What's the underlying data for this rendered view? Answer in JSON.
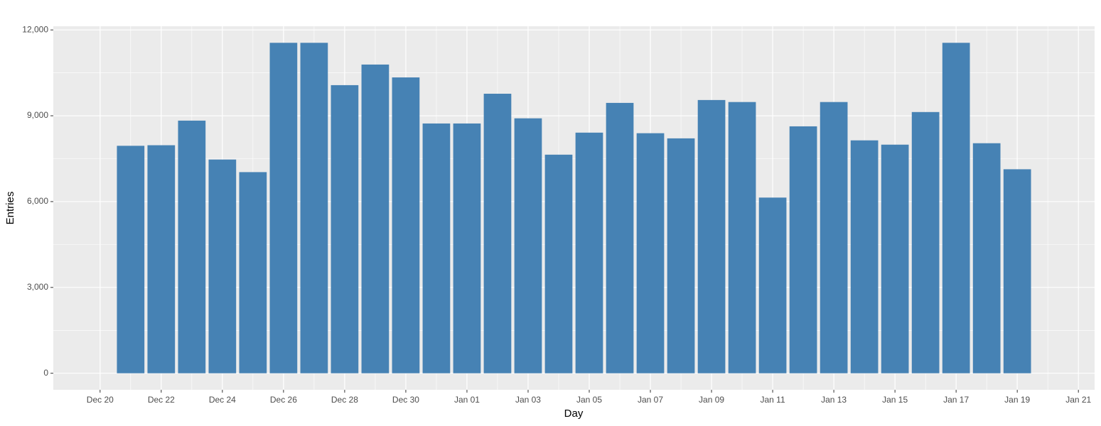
{
  "chart_data": {
    "type": "bar",
    "x_label": "Day",
    "y_label": "Entries",
    "x": [
      "Dec 21",
      "Dec 22",
      "Dec 23",
      "Dec 24",
      "Dec 25",
      "Dec 26",
      "Dec 27",
      "Dec 28",
      "Dec 29",
      "Dec 30",
      "Dec 31",
      "Jan 01",
      "Jan 02",
      "Jan 03",
      "Jan 04",
      "Jan 05",
      "Jan 06",
      "Jan 07",
      "Jan 08",
      "Jan 09",
      "Jan 10",
      "Jan 11",
      "Jan 12",
      "Jan 13",
      "Jan 14",
      "Jan 15",
      "Jan 16",
      "Jan 17",
      "Jan 18",
      "Jan 19"
    ],
    "values": [
      7950,
      7970,
      8830,
      7470,
      7030,
      11550,
      11550,
      10070,
      10790,
      10340,
      8730,
      8730,
      9770,
      8910,
      7640,
      8410,
      9450,
      8390,
      8210,
      9550,
      9480,
      6140,
      8630,
      9480,
      8140,
      7990,
      9130,
      11550,
      8040,
      7130
    ],
    "color": "#4682b4",
    "xticks": [
      "Dec 20",
      "Dec 22",
      "Dec 24",
      "Dec 26",
      "Dec 28",
      "Dec 30",
      "Jan 01",
      "Jan 03",
      "Jan 05",
      "Jan 07",
      "Jan 09",
      "Jan 11",
      "Jan 13",
      "Jan 15",
      "Jan 17",
      "Jan 19",
      "Jan 21"
    ],
    "ylim": [
      -578,
      12128
    ],
    "yticks": [
      0,
      {
        "value": 3000,
        "label": "3,000"
      },
      {
        "value": 6000,
        "label": "6,000"
      },
      {
        "value": 9000,
        "label": "9,000"
      },
      {
        "value": 12000,
        "label": "12,000"
      }
    ],
    "grid": true
  }
}
